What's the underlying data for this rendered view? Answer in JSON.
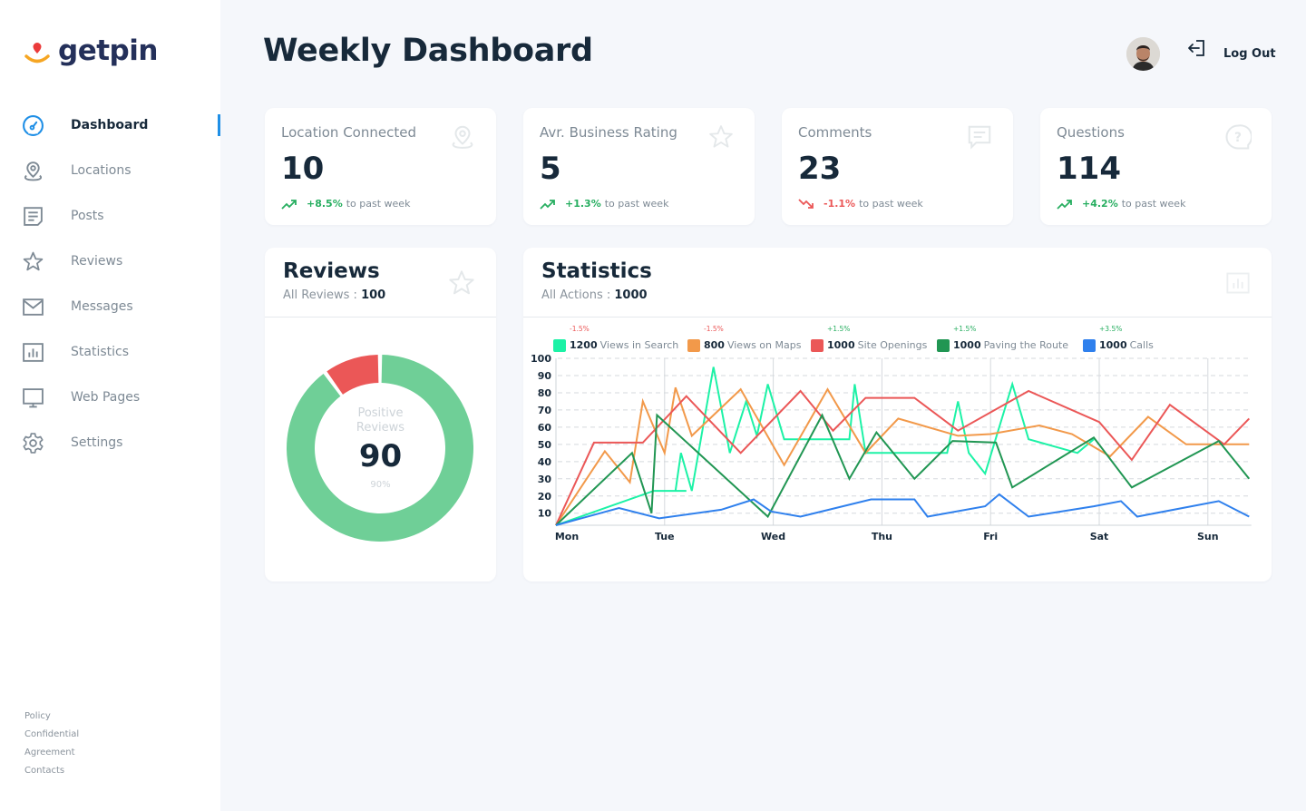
{
  "brand": {
    "name": "getpin",
    "pin_color": "#eb3b3b",
    "smile_color": "#f6a623",
    "text_color": "#24305a"
  },
  "sidebar": {
    "items": [
      {
        "label": "Dashboard",
        "icon": "gauge-icon",
        "active": true
      },
      {
        "label": "Locations",
        "icon": "location-pin-icon"
      },
      {
        "label": "Posts",
        "icon": "document-icon"
      },
      {
        "label": "Reviews",
        "icon": "star-icon"
      },
      {
        "label": "Messages",
        "icon": "envelope-icon"
      },
      {
        "label": "Statistics",
        "icon": "bar-chart-icon"
      },
      {
        "label": "Web Pages",
        "icon": "monitor-icon"
      },
      {
        "label": "Settings",
        "icon": "gear-icon"
      }
    ],
    "footer_links": [
      "Policy",
      "Confidential",
      "Agreement",
      "Contacts"
    ]
  },
  "header": {
    "title": "Weekly Dashboard",
    "logout_label": "Log Out"
  },
  "kpis": [
    {
      "title": "Location Connected",
      "value": "10",
      "change": "+8.5%",
      "suffix": "to past week",
      "direction": "up",
      "icon": "location-pin-icon"
    },
    {
      "title": "Avr. Business Rating",
      "value": "5",
      "change": "+1.3%",
      "suffix": "to past week",
      "direction": "up",
      "icon": "star-icon"
    },
    {
      "title": "Comments",
      "value": "23",
      "change": "-1.1%",
      "suffix": "to past week",
      "direction": "down",
      "icon": "comment-icon"
    },
    {
      "title": "Questions",
      "value": "114",
      "change": "+4.2%",
      "suffix": "to past week",
      "direction": "up",
      "icon": "question-bubble-icon"
    }
  ],
  "reviews": {
    "title": "Reviews",
    "subtitle_label": "All Reviews :",
    "subtitle_value": "100",
    "center_label_1": "Positive",
    "center_label_2": "Reviews",
    "center_value": "90",
    "center_percent": "90%",
    "positive_color": "#6fcf97",
    "negative_color": "#eb5757"
  },
  "statistics": {
    "title": "Statistics",
    "subtitle_label": "All Actions :",
    "subtitle_value": "1000"
  },
  "chart_data": [
    {
      "type": "pie",
      "title": "Reviews",
      "categories": [
        "Positive",
        "Negative"
      ],
      "values": [
        90,
        10
      ],
      "colors": [
        "#6fcf97",
        "#eb5757"
      ]
    },
    {
      "type": "line",
      "title": "Statistics",
      "categories": [
        "Mon",
        "Tue",
        "Wed",
        "Thu",
        "Fri",
        "Sat",
        "Sun"
      ],
      "xlim": [
        0,
        6.4
      ],
      "ylim": [
        3,
        100
      ],
      "yticks": [
        10,
        20,
        30,
        40,
        50,
        60,
        70,
        80,
        90,
        100
      ],
      "grid": true,
      "legend_position": "top",
      "series": [
        {
          "name": "Views in Search",
          "total": "1200",
          "change": "-1.5%",
          "change_dir": "down",
          "color": "#1cf2a6",
          "points": [
            [
              0,
              3
            ],
            [
              0.9,
              23
            ],
            [
              1.2,
              23
            ],
            [
              1.1,
              23
            ],
            [
              1.15,
              45
            ],
            [
              1.25,
              23
            ],
            [
              1.45,
              95
            ],
            [
              1.6,
              45
            ],
            [
              1.75,
              75
            ],
            [
              1.85,
              55
            ],
            [
              1.95,
              85
            ],
            [
              2.1,
              53
            ],
            [
              2.7,
              53
            ],
            [
              2.75,
              85
            ],
            [
              2.85,
              45
            ],
            [
              3.6,
              45
            ],
            [
              3.7,
              75
            ],
            [
              3.8,
              45
            ],
            [
              3.95,
              33
            ],
            [
              4.2,
              85
            ],
            [
              4.35,
              53
            ],
            [
              4.8,
              45
            ],
            [
              4.95,
              53
            ]
          ]
        },
        {
          "name": "Views on Maps",
          "total": "800",
          "change": "-1.5%",
          "change_dir": "down",
          "color": "#f2994a",
          "points": [
            [
              0,
              3
            ],
            [
              0.45,
              46
            ],
            [
              0.68,
              28
            ],
            [
              0.8,
              75
            ],
            [
              1.0,
              45
            ],
            [
              1.1,
              83
            ],
            [
              1.25,
              55
            ],
            [
              1.7,
              82
            ],
            [
              2.1,
              38
            ],
            [
              2.5,
              82
            ],
            [
              2.85,
              45
            ],
            [
              3.15,
              65
            ],
            [
              3.7,
              55
            ],
            [
              4.0,
              56
            ],
            [
              4.45,
              61
            ],
            [
              4.75,
              56
            ],
            [
              5.1,
              43
            ],
            [
              5.45,
              66
            ],
            [
              5.8,
              50
            ],
            [
              6.0,
              50
            ],
            [
              6.38,
              50
            ]
          ]
        },
        {
          "name": "Site Openings",
          "total": "1000",
          "change": "+1.5%",
          "change_dir": "up",
          "color": "#eb5757",
          "points": [
            [
              0,
              3
            ],
            [
              0.35,
              51
            ],
            [
              0.8,
              51
            ],
            [
              1.2,
              78
            ],
            [
              1.7,
              45
            ],
            [
              2.25,
              81
            ],
            [
              2.55,
              58
            ],
            [
              2.85,
              77
            ],
            [
              3.3,
              77
            ],
            [
              3.7,
              58
            ],
            [
              4.35,
              81
            ],
            [
              5.0,
              63
            ],
            [
              5.3,
              41
            ],
            [
              5.65,
              73
            ],
            [
              6.15,
              50
            ],
            [
              6.38,
              65
            ]
          ]
        },
        {
          "name": "Paving the Route",
          "total": "1000",
          "change": "+1.5%",
          "change_dir": "up",
          "color": "#219653",
          "points": [
            [
              0,
              3
            ],
            [
              0.7,
              45
            ],
            [
              0.88,
              10
            ],
            [
              0.93,
              67
            ],
            [
              1.95,
              8
            ],
            [
              2.45,
              67
            ],
            [
              2.7,
              30
            ],
            [
              2.95,
              57
            ],
            [
              3.3,
              30
            ],
            [
              3.3,
              30
            ],
            [
              3.65,
              52
            ],
            [
              4.05,
              51
            ],
            [
              4.2,
              25
            ],
            [
              4.95,
              54
            ],
            [
              5.3,
              25
            ],
            [
              6.1,
              52
            ],
            [
              6.38,
              30
            ]
          ]
        },
        {
          "name": "Calls",
          "total": "1000",
          "change": "+3.5%",
          "change_dir": "up",
          "color": "#2f80ed",
          "points": [
            [
              0,
              3
            ],
            [
              0.58,
              13
            ],
            [
              0.95,
              7
            ],
            [
              1.52,
              12
            ],
            [
              1.82,
              18
            ],
            [
              1.98,
              11
            ],
            [
              2.25,
              8
            ],
            [
              2.9,
              18
            ],
            [
              3.3,
              18
            ],
            [
              3.42,
              8
            ],
            [
              3.95,
              14
            ],
            [
              4.08,
              21
            ],
            [
              4.35,
              8
            ],
            [
              4.95,
              14
            ],
            [
              5.2,
              17
            ],
            [
              5.35,
              8
            ],
            [
              6.1,
              17
            ],
            [
              6.38,
              8
            ]
          ]
        }
      ]
    }
  ]
}
